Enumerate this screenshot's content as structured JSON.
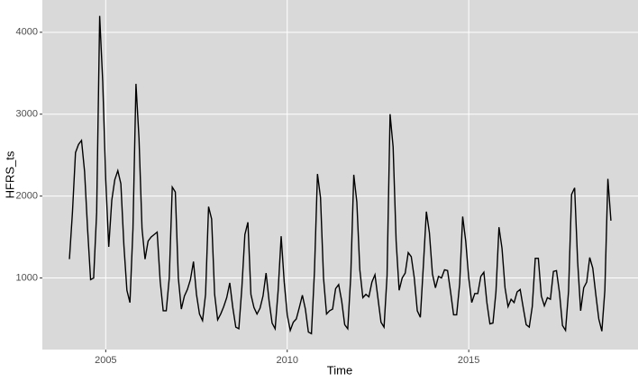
{
  "chart_data": {
    "type": "line",
    "x_label": "Time",
    "y_label": "HFRS_ts",
    "x": [
      2004,
      2004.083,
      2004.167,
      2004.25,
      2004.333,
      2004.417,
      2004.5,
      2004.583,
      2004.667,
      2004.75,
      2004.833,
      2004.917,
      2005,
      2005.083,
      2005.167,
      2005.25,
      2005.333,
      2005.417,
      2005.5,
      2005.583,
      2005.667,
      2005.75,
      2005.833,
      2005.917,
      2006,
      2006.083,
      2006.167,
      2006.25,
      2006.333,
      2006.417,
      2006.5,
      2006.583,
      2006.667,
      2006.75,
      2006.833,
      2006.917,
      2007,
      2007.083,
      2007.167,
      2007.25,
      2007.333,
      2007.417,
      2007.5,
      2007.583,
      2007.667,
      2007.75,
      2007.833,
      2007.917,
      2008,
      2008.083,
      2008.167,
      2008.25,
      2008.333,
      2008.417,
      2008.5,
      2008.583,
      2008.667,
      2008.75,
      2008.833,
      2008.917,
      2009,
      2009.083,
      2009.167,
      2009.25,
      2009.333,
      2009.417,
      2009.5,
      2009.583,
      2009.667,
      2009.75,
      2009.833,
      2009.917,
      2010,
      2010.083,
      2010.167,
      2010.25,
      2010.333,
      2010.417,
      2010.5,
      2010.583,
      2010.667,
      2010.75,
      2010.833,
      2010.917,
      2011,
      2011.083,
      2011.167,
      2011.25,
      2011.333,
      2011.417,
      2011.5,
      2011.583,
      2011.667,
      2011.75,
      2011.833,
      2011.917,
      2012,
      2012.083,
      2012.167,
      2012.25,
      2012.333,
      2012.417,
      2012.5,
      2012.583,
      2012.667,
      2012.75,
      2012.833,
      2012.917,
      2013,
      2013.083,
      2013.167,
      2013.25,
      2013.333,
      2013.417,
      2013.5,
      2013.583,
      2013.667,
      2013.75,
      2013.833,
      2013.917,
      2014,
      2014.083,
      2014.167,
      2014.25,
      2014.333,
      2014.417,
      2014.5,
      2014.583,
      2014.667,
      2014.75,
      2014.833,
      2014.917,
      2015,
      2015.083,
      2015.167,
      2015.25,
      2015.333,
      2015.417,
      2015.5,
      2015.583,
      2015.667,
      2015.75,
      2015.833,
      2015.917,
      2016,
      2016.083,
      2016.167,
      2016.25,
      2016.333,
      2016.417,
      2016.5,
      2016.583,
      2016.667,
      2016.75,
      2016.833,
      2016.917,
      2017,
      2017.083,
      2017.167,
      2017.25,
      2017.333,
      2017.417,
      2017.5,
      2017.583,
      2017.667,
      2017.75,
      2017.833,
      2017.917,
      2018,
      2018.083,
      2018.167,
      2018.25,
      2018.333,
      2018.417,
      2018.5,
      2018.583,
      2018.667,
      2018.75,
      2018.833,
      2018.917
    ],
    "series": [
      {
        "color": "#000000",
        "values": [
          1230,
          1800,
          2530,
          2630,
          2680,
          2300,
          1600,
          980,
          1000,
          1800,
          4200,
          3400,
          2200,
          1380,
          1950,
          2200,
          2310,
          2150,
          1400,
          850,
          700,
          1600,
          3370,
          2700,
          1600,
          1230,
          1450,
          1500,
          1530,
          1560,
          960,
          600,
          600,
          1000,
          2110,
          2050,
          1000,
          620,
          780,
          860,
          980,
          1200,
          800,
          560,
          480,
          800,
          1870,
          1720,
          800,
          490,
          560,
          650,
          760,
          940,
          640,
          400,
          380,
          880,
          1530,
          1680,
          800,
          640,
          560,
          630,
          780,
          1060,
          720,
          450,
          380,
          850,
          1510,
          950,
          550,
          360,
          460,
          500,
          640,
          790,
          620,
          340,
          320,
          1080,
          2270,
          1980,
          1000,
          560,
          600,
          620,
          870,
          920,
          720,
          430,
          380,
          1020,
          2260,
          1930,
          1100,
          760,
          800,
          770,
          950,
          1040,
          750,
          460,
          400,
          1030,
          3000,
          2600,
          1450,
          850,
          1000,
          1060,
          1310,
          1260,
          1000,
          600,
          520,
          1150,
          1810,
          1550,
          1050,
          880,
          1020,
          1000,
          1100,
          1090,
          830,
          550,
          550,
          930,
          1750,
          1450,
          1000,
          700,
          810,
          810,
          1020,
          1070,
          700,
          440,
          450,
          830,
          1620,
          1360,
          880,
          650,
          740,
          700,
          830,
          860,
          640,
          430,
          400,
          650,
          1240,
          1240,
          780,
          660,
          760,
          740,
          1080,
          1090,
          820,
          420,
          360,
          840,
          2020,
          2100,
          1200,
          600,
          880,
          950,
          1250,
          1120,
          800,
          500,
          350,
          850,
          2210,
          1700
        ]
      }
    ],
    "xlim": [
      2003.254,
      2019.663
    ],
    "xticks": [
      2005,
      2010,
      2015
    ],
    "ylim": [
      126,
      4394
    ],
    "yticks": [
      1000,
      2000,
      3000,
      4000
    ],
    "grid": true
  }
}
